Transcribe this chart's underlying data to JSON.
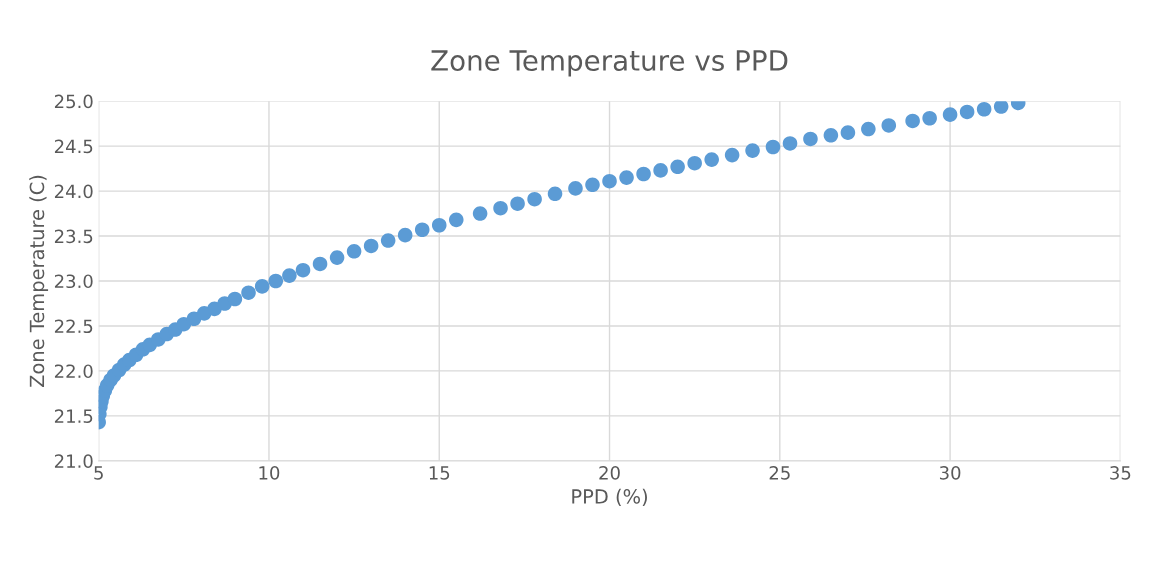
{
  "chart_data": {
    "type": "scatter",
    "title": "Zone Temperature vs PPD",
    "xlabel": "PPD (%)",
    "ylabel": "Zone Temperature (C)",
    "x": [
      5.0,
      5.02,
      5.05,
      5.08,
      5.12,
      5.18,
      5.25,
      5.35,
      5.45,
      5.6,
      5.75,
      5.9,
      6.1,
      6.3,
      6.5,
      6.75,
      7.0,
      7.25,
      7.5,
      7.8,
      8.1,
      8.4,
      8.7,
      9.0,
      9.4,
      9.8,
      10.2,
      10.6,
      11.0,
      11.5,
      12.0,
      12.5,
      13.0,
      13.5,
      14.0,
      14.5,
      15.0,
      15.5,
      16.2,
      16.8,
      17.3,
      17.8,
      18.4,
      19.0,
      19.5,
      20.0,
      20.5,
      21.0,
      21.5,
      22.0,
      22.5,
      23.0,
      23.6,
      24.2,
      24.8,
      25.3,
      25.9,
      26.5,
      27.0,
      27.6,
      28.2,
      28.9,
      29.4,
      30.0,
      30.5,
      31.0,
      31.5,
      32.0
    ],
    "values": [
      21.43,
      21.52,
      21.6,
      21.66,
      21.72,
      21.78,
      21.84,
      21.9,
      21.95,
      22.01,
      22.07,
      22.12,
      22.18,
      22.24,
      22.29,
      22.35,
      22.41,
      22.46,
      22.52,
      22.58,
      22.64,
      22.69,
      22.75,
      22.8,
      22.87,
      22.94,
      23.0,
      23.06,
      23.12,
      23.19,
      23.26,
      23.33,
      23.39,
      23.45,
      23.51,
      23.57,
      23.62,
      23.68,
      23.75,
      23.81,
      23.86,
      23.91,
      23.97,
      24.03,
      24.07,
      24.11,
      24.15,
      24.19,
      24.23,
      24.27,
      24.31,
      24.35,
      24.4,
      24.45,
      24.49,
      24.53,
      24.58,
      24.62,
      24.65,
      24.69,
      24.73,
      24.78,
      24.81,
      24.85,
      24.88,
      24.91,
      24.94,
      24.98
    ],
    "color": "#5b9bd5",
    "marker": "circle",
    "grid": true,
    "xlim": [
      5,
      35
    ],
    "xticks": [
      5,
      10,
      15,
      20,
      25,
      30,
      35
    ],
    "ylim": [
      21.0,
      25.0
    ],
    "yticks": [
      {
        "value": 21.0,
        "label": "21.0"
      },
      {
        "value": 21.5,
        "label": "21.5"
      },
      {
        "value": 22.0,
        "label": "22.0"
      },
      {
        "value": 22.5,
        "label": "22.5"
      },
      {
        "value": 23.0,
        "label": "23.0"
      },
      {
        "value": 23.5,
        "label": "23.5"
      },
      {
        "value": 24.0,
        "label": "24.0"
      },
      {
        "value": 24.5,
        "label": "24.5"
      },
      {
        "value": 25.0,
        "label": "25.0"
      }
    ]
  }
}
